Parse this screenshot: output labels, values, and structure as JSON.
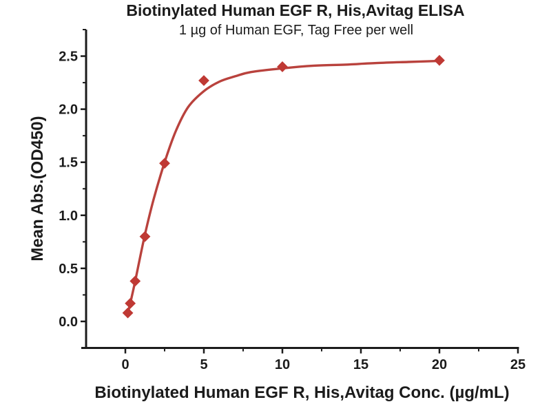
{
  "chart_data": {
    "type": "scatter",
    "title": "Biotinylated Human EGF R, His,Avitag ELISA",
    "subtitle": "1 µg of Human EGF, Tag Free per well",
    "xlabel": "Biotinylated Human EGF R, His,Avitag Conc. (µg/mL)",
    "ylabel": "Mean Abs.(OD450)",
    "xlim": [
      -2.5,
      25
    ],
    "ylim": [
      -0.25,
      2.75
    ],
    "grid": false,
    "legend": false,
    "x_axis": {
      "tick_values": [
        0,
        5,
        10,
        15,
        20,
        25
      ],
      "tick_labels": [
        "0",
        "5",
        "10",
        "15",
        "20",
        "25"
      ],
      "minor_ticks": [
        2.5,
        7.5,
        12.5,
        17.5,
        22.5
      ]
    },
    "y_axis": {
      "tick_values": [
        0,
        0.5,
        1,
        1.5,
        2,
        2.5
      ],
      "tick_labels": [
        "0.0",
        "0.5",
        "1.0",
        "1.5",
        "2.0",
        "2.5"
      ],
      "minor_ticks": [
        0.25,
        0.75,
        1.25,
        1.75,
        2.25,
        2.75
      ]
    },
    "series": [
      {
        "name": "Mean Abs.(OD450)",
        "marker": "diamond",
        "color": "#bf3934",
        "x": [
          0.156,
          0.313,
          0.625,
          1.25,
          2.5,
          5,
          10,
          20
        ],
        "y": [
          0.08,
          0.17,
          0.38,
          0.8,
          1.49,
          2.27,
          2.4,
          2.46
        ]
      }
    ],
    "fit_curve": {
      "color": "#b9423d",
      "x": [
        0.156,
        0.313,
        0.625,
        1.25,
        1.8,
        2.5,
        3.2,
        4,
        5,
        6,
        7,
        8,
        10,
        12,
        14,
        16,
        18,
        20
      ],
      "y": [
        0.08,
        0.17,
        0.38,
        0.82,
        1.15,
        1.5,
        1.79,
        2.02,
        2.17,
        2.26,
        2.31,
        2.35,
        2.385,
        2.41,
        2.42,
        2.435,
        2.445,
        2.455
      ]
    },
    "colors": {
      "axis": "#1b1b1b",
      "background": "#ffffff"
    }
  }
}
